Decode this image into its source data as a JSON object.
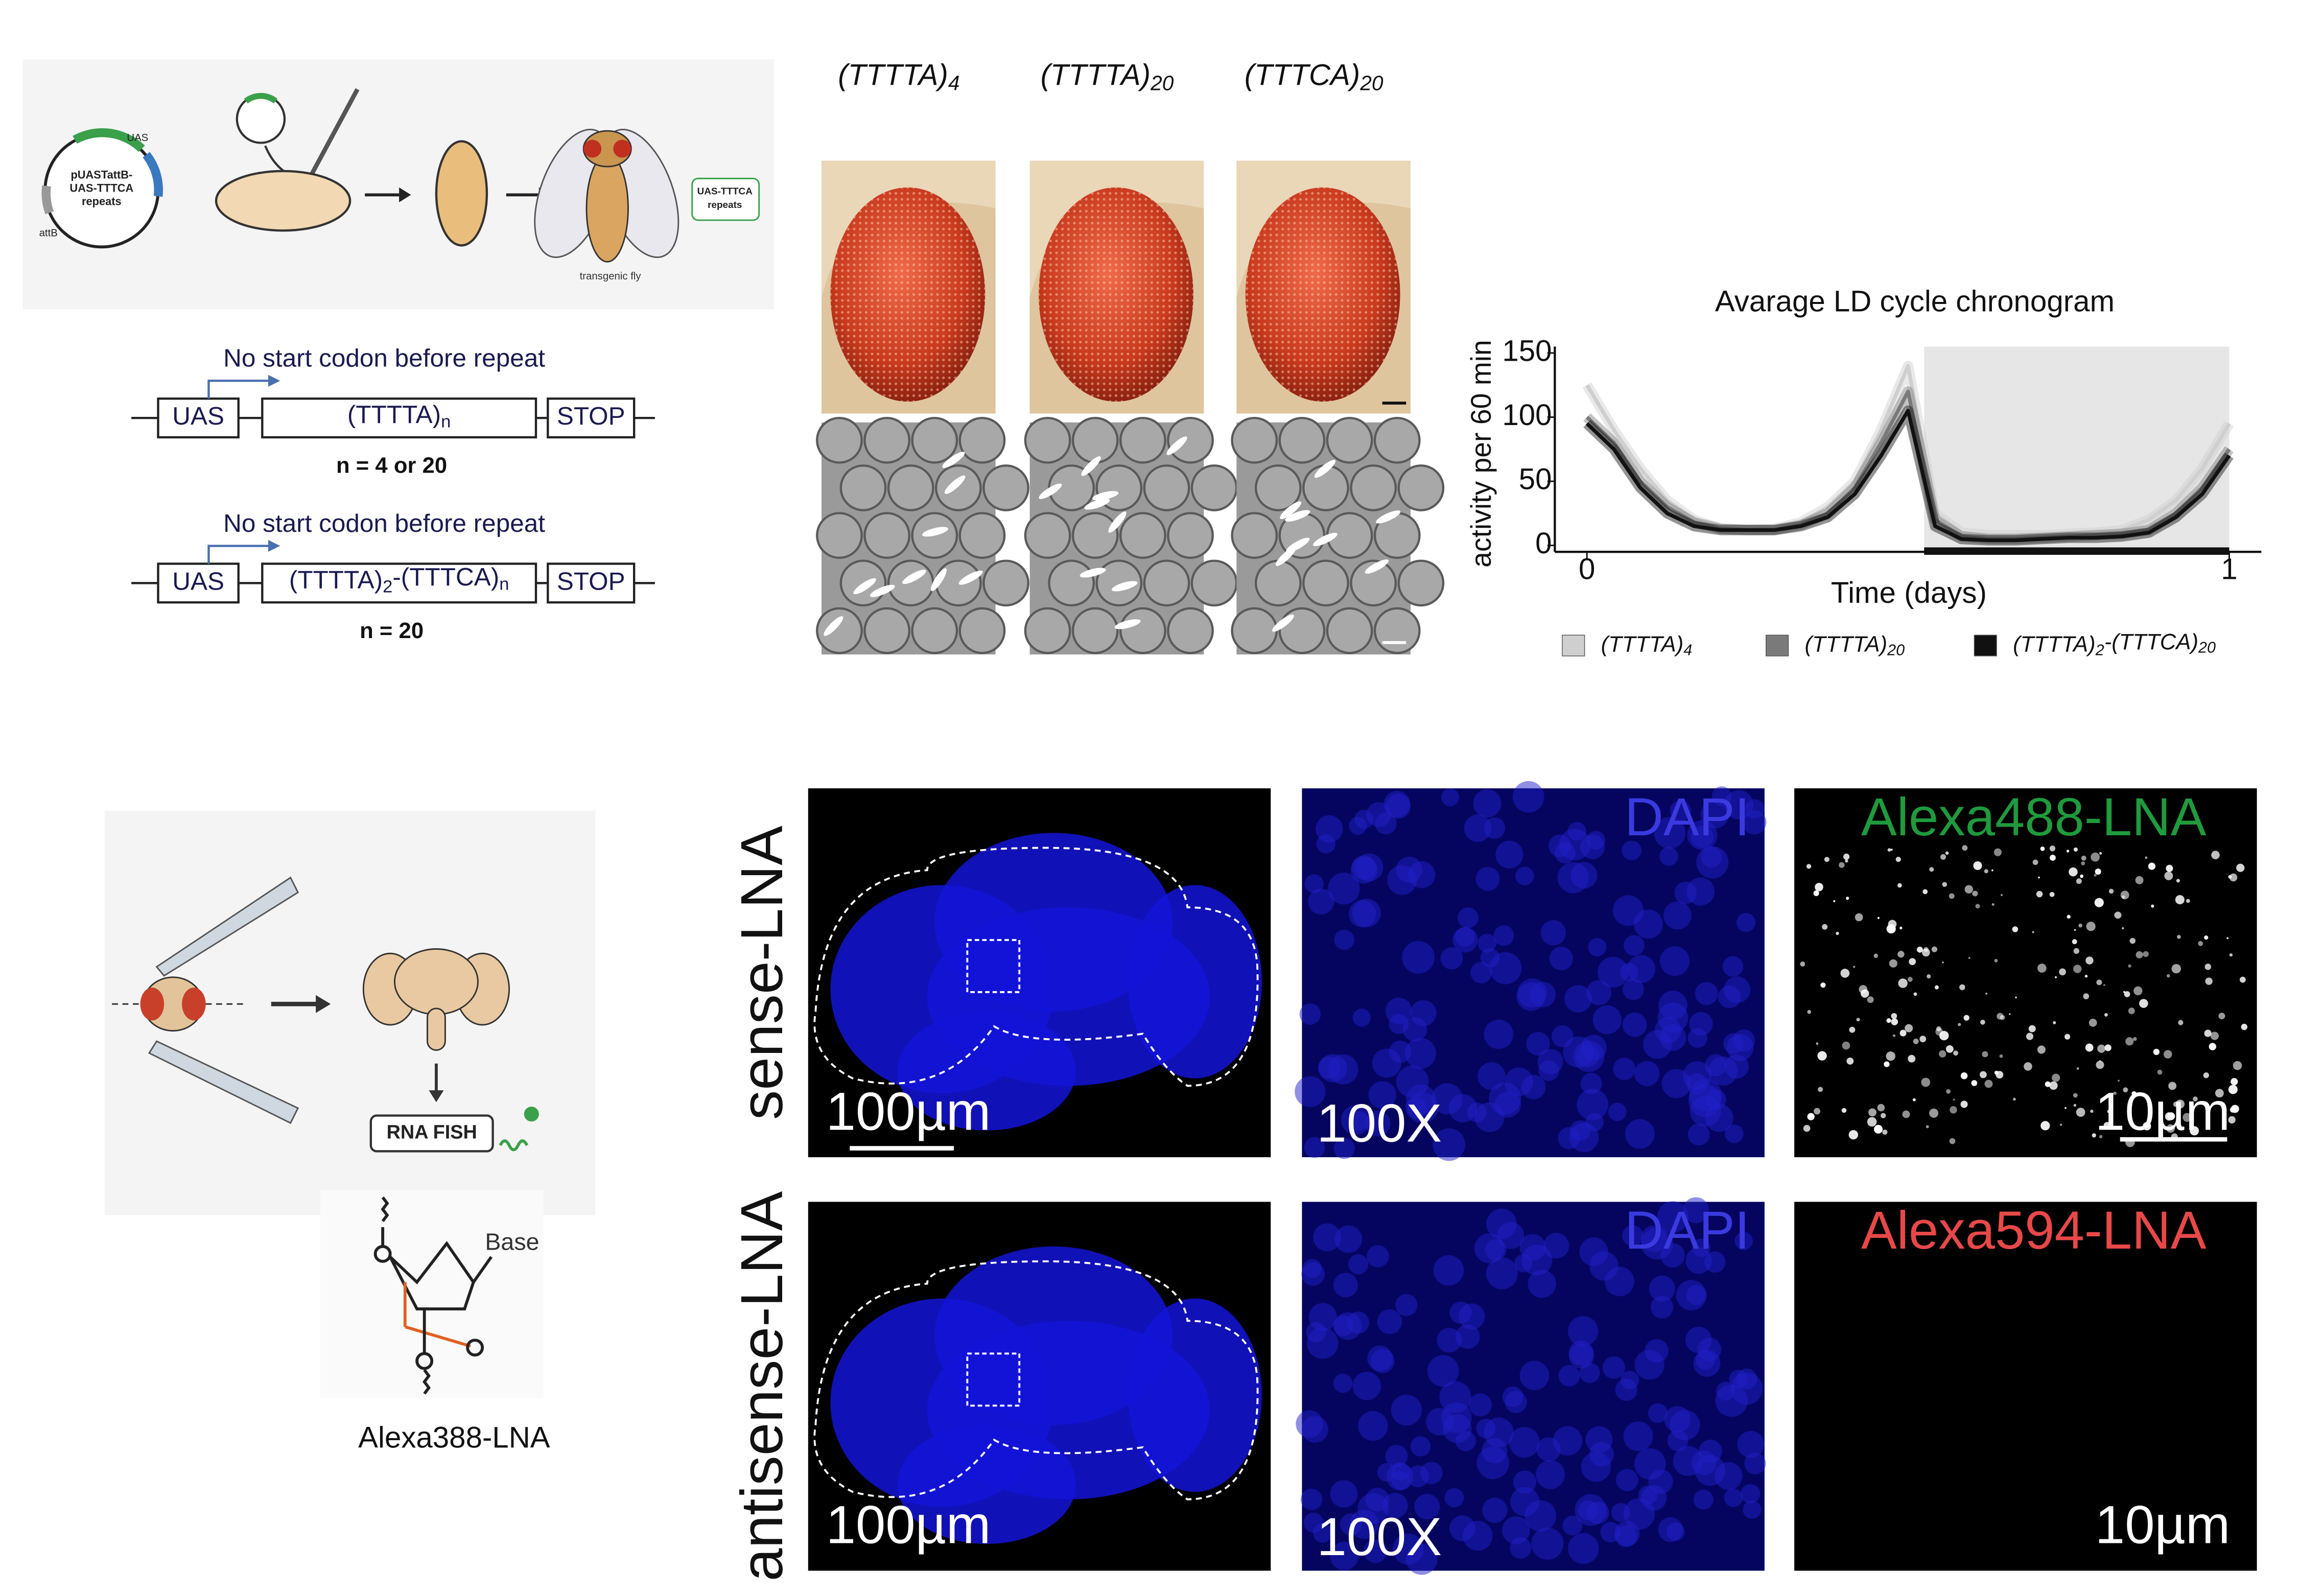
{
  "panel_a": {
    "plasmid_lines": [
      "pUASTattB-",
      "UAS-TTTCA",
      "repeats"
    ],
    "uas": "UAS",
    "attb": "attB",
    "insert_lines": [
      "UAS-TTTCA",
      "repeats"
    ],
    "fly_label": "transgenic fly"
  },
  "constructs": [
    {
      "note": "No start codon before repeat",
      "promoter": "UAS",
      "repeat": [
        {
          "text": "(TTTTA)"
        },
        {
          "sub": "n"
        }
      ],
      "stop": "STOP",
      "n_label": "n = 4 or 20"
    },
    {
      "note": "No start codon before repeat",
      "promoter": "UAS",
      "repeat": [
        {
          "text": "(TTTTA)"
        },
        {
          "sub": "2"
        },
        {
          "text": "-(TTTCA)"
        },
        {
          "sub": "n"
        }
      ],
      "stop": "STOP",
      "n_label": "n = 20"
    }
  ],
  "genotypes": [
    [
      {
        "text": "(TTTTA)"
      },
      {
        "sub": "4"
      }
    ],
    [
      {
        "text": "(TTTTA)"
      },
      {
        "sub": "20"
      }
    ],
    [
      {
        "text": "(TTTCA)"
      },
      {
        "sub": "20"
      }
    ]
  ],
  "chart_data": {
    "type": "line",
    "title": "Avarage LD cycle chronogram",
    "x_label": "Time (days)",
    "y_label": "activity per 60 min",
    "x": [
      0,
      0.042,
      0.083,
      0.125,
      0.167,
      0.208,
      0.25,
      0.292,
      0.333,
      0.375,
      0.417,
      0.458,
      0.5,
      0.542,
      0.583,
      0.625,
      0.667,
      0.708,
      0.75,
      0.792,
      0.833,
      0.875,
      0.917,
      0.958,
      1
    ],
    "xlim": [
      -0.05,
      1.05
    ],
    "xticks": [
      0,
      1
    ],
    "ylim": [
      -5,
      155
    ],
    "yticks": [
      0,
      50,
      100,
      150
    ],
    "night": [
      0.525,
      1
    ],
    "series": [
      {
        "name": [
          {
            "text": "(TTTTA)"
          },
          {
            "sub": "4"
          }
        ],
        "color": "#cfcfcf",
        "values": [
          125,
          90,
          60,
          35,
          20,
          13,
          12,
          13,
          18,
          30,
          50,
          90,
          140,
          25,
          10,
          8,
          8,
          8,
          9,
          10,
          12,
          20,
          35,
          60,
          95
        ]
      },
      {
        "name": [
          {
            "text": "(TTTTA)"
          },
          {
            "sub": "20"
          }
        ],
        "color": "#7a7a7a",
        "values": [
          100,
          80,
          50,
          30,
          18,
          13,
          12,
          12,
          16,
          25,
          45,
          80,
          120,
          20,
          7,
          5,
          5,
          6,
          7,
          8,
          9,
          12,
          25,
          45,
          75
        ]
      },
      {
        "name": [
          {
            "text": "(TTTTA)"
          },
          {
            "sub": "2"
          },
          {
            "text": "-(TTTCA)"
          },
          {
            "sub": "20"
          }
        ],
        "color": "#111111",
        "values": [
          95,
          75,
          45,
          25,
          15,
          12,
          12,
          12,
          15,
          22,
          40,
          70,
          105,
          15,
          5,
          4,
          4,
          5,
          6,
          6,
          7,
          10,
          22,
          40,
          70
        ]
      }
    ]
  },
  "panel_c": {
    "fish": "RNA FISH",
    "base": "Base",
    "probe": "Alexa388-LNA"
  },
  "imaging": {
    "rows": [
      {
        "label": "sense-LNA",
        "scale": "100µm",
        "magnification": "100X",
        "dapi": "DAPI",
        "probe": "Alexa488-LNA",
        "probe_color": "#1f9a3c",
        "zoom_scale": "10µm",
        "signal": true
      },
      {
        "label": "antisense-LNA",
        "scale": "100µm",
        "magnification": "100X",
        "dapi": "DAPI",
        "probe": "Alexa594-LNA",
        "probe_color": "#e84848",
        "zoom_scale": "10µm",
        "signal": false
      }
    ]
  }
}
